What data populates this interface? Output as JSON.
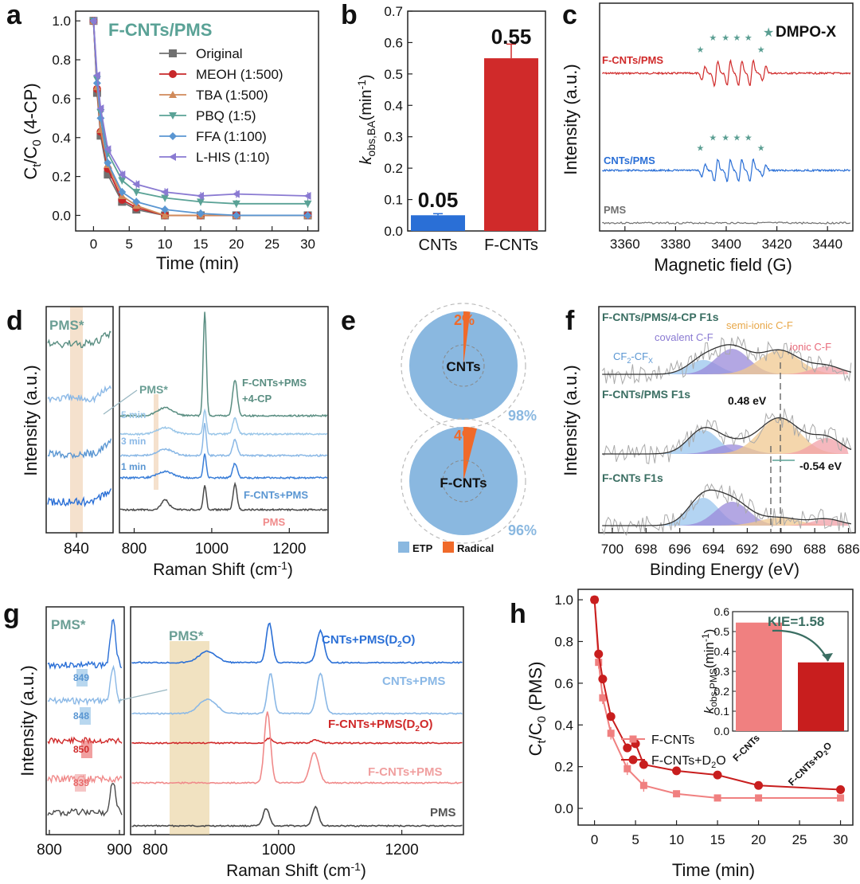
{
  "colors": {
    "orig": "#707070",
    "meoh": "#c8282a",
    "tba": "#d08a5a",
    "pbq": "#5aa296",
    "ffa": "#5a96d2",
    "lhis": "#8a7ad2",
    "blue": "#2a6fd6",
    "red": "#d02a2a",
    "lightblue": "#8ab8e6",
    "pink": "#f08a8a",
    "teal": "#5a8e82",
    "darkgray": "#4a4a4a",
    "pie_etp": "#8ab8e0",
    "pie_rad": "#f06a2a",
    "salmon": "#f08080",
    "darkred": "#c81e1e"
  },
  "panels": {
    "a": {
      "label": "a",
      "heading": "F-CNTs/PMS"
    },
    "b": {
      "label": "b",
      "value_labels": [
        "0.05",
        "0.55"
      ]
    },
    "c": {
      "label": "c",
      "series_labels": [
        "F-CNTs/PMS",
        "CNTs/PMS",
        "PMS"
      ],
      "marker_legend": "DMPO-X",
      "star": "★"
    },
    "d": {
      "label": "d",
      "pms_star": "PMS*",
      "pms_star2": "PMS*",
      "curve_labels": [
        "F-CNTs+PMS",
        "+4-CP",
        "5 min",
        "3 min",
        "1 min",
        "F-CNTs+PMS",
        "PMS"
      ],
      "ylabel": "Intensity (a.u.)",
      "xlabel": "Raman Shift (cm⁻¹)",
      "inset_tick": "840",
      "ticks": [
        "800",
        "1000",
        "1200"
      ]
    },
    "e": {
      "label": "e",
      "pies": [
        {
          "name": "CNTs",
          "radical_pct": "2%",
          "etp_pct": "98%",
          "radical": 2,
          "etp": 98
        },
        {
          "name": "F-CNTs",
          "radical_pct": "4%",
          "etp_pct": "96%",
          "radical": 4,
          "etp": 96
        }
      ],
      "legend": [
        "ETP",
        "Radical"
      ]
    },
    "f": {
      "label": "f",
      "titles": [
        "F-CNTs/PMS/4-CP  F1s",
        "F-CNTs/PMS  F1s",
        "F-CNTs  F1s"
      ],
      "components": [
        "covalent C-F",
        "semi-ionic C-F",
        "ionic C-F"
      ],
      "cf2": "CF",
      "cf2_sub": "2",
      "cfx_dash": "-CF",
      "cfx_sub": "X",
      "shift1": "0.48 eV",
      "shift2": "-0.54 eV",
      "ylabel": "Intensity (a.u.)",
      "xlabel": "Binding Energy (eV)",
      "ticks": [
        "700",
        "698",
        "696",
        "694",
        "692",
        "690",
        "688",
        "686"
      ]
    },
    "g": {
      "label": "g",
      "pms_star": "PMS*",
      "pms_star2": "PMS*",
      "curve_labels": [
        "CNTs+PMS(D",
        "CNTs+PMS",
        "F-CNTs+PMS(D",
        "F-CNTs+PMS",
        "PMS"
      ],
      "d2o_sub": "2",
      "d2o_tail": "O)",
      "peak_labels": [
        "849",
        "848",
        "850",
        "839"
      ],
      "ylabel": "Intensity (a.u.)",
      "xlabel": "Raman Shift (cm⁻¹)",
      "inset_ticks": [
        "800",
        "900"
      ],
      "ticks": [
        "800",
        "1000",
        "1200"
      ]
    },
    "h": {
      "label": "h",
      "kie": "KIE=1.58",
      "inset_xlabels": [
        "F-CNTs",
        "F-CNTs+D"
      ],
      "inset_sub": "2",
      "inset_o": "O"
    }
  },
  "chart_data": [
    {
      "panel": "a",
      "type": "line",
      "title": "F-CNTs/PMS",
      "xlabel": "Time (min)",
      "ylabel": "Ct/C0 (4-CP)",
      "xlim": [
        -2.5,
        31.5
      ],
      "ylim": [
        -0.08,
        1.05
      ],
      "xticks": [
        0,
        5,
        10,
        15,
        20,
        25,
        30
      ],
      "yticks": [
        0.0,
        0.2,
        0.4,
        0.6,
        0.8,
        1.0
      ],
      "x": [
        0,
        0.5,
        1,
        2,
        4,
        6,
        10,
        15,
        20,
        30
      ],
      "series": [
        {
          "name": "Original",
          "values": [
            1.0,
            0.63,
            0.41,
            0.21,
            0.07,
            0.03,
            0.0,
            0.0,
            0.0,
            0.0
          ]
        },
        {
          "name": "MEOH (1:500)",
          "values": [
            1.0,
            0.65,
            0.43,
            0.24,
            0.08,
            0.04,
            0.0,
            0.0,
            0.0,
            0.0
          ]
        },
        {
          "name": "TBA (1:500)",
          "values": [
            1.0,
            0.66,
            0.44,
            0.26,
            0.1,
            0.05,
            0.0,
            0.0,
            0.0,
            0.0
          ]
        },
        {
          "name": "PBQ (1:5)",
          "values": [
            1.0,
            0.7,
            0.53,
            0.32,
            0.18,
            0.12,
            0.09,
            0.07,
            0.06,
            0.06
          ]
        },
        {
          "name": "FFA (1:100)",
          "values": [
            1.0,
            0.68,
            0.5,
            0.27,
            0.12,
            0.07,
            0.03,
            0.01,
            0.0,
            0.0
          ]
        },
        {
          "name": "L-HIS (1:10)",
          "values": [
            1.0,
            0.72,
            0.55,
            0.34,
            0.21,
            0.16,
            0.12,
            0.1,
            0.11,
            0.1
          ]
        }
      ]
    },
    {
      "panel": "b",
      "type": "bar",
      "ylabel": "kobs,BA(min-1)",
      "categories": [
        "CNTs",
        "F-CNTs"
      ],
      "values": [
        0.05,
        0.55
      ],
      "errors": [
        0.005,
        0.045
      ],
      "ylim": [
        0,
        0.7
      ],
      "yticks": [
        0.0,
        0.1,
        0.2,
        0.3,
        0.4,
        0.5,
        0.6,
        0.7
      ]
    },
    {
      "panel": "c",
      "type": "line",
      "xlabel": "Magnetic field (G)",
      "ylabel": "Intensity (a.u.)",
      "xlim": [
        3350,
        3450
      ],
      "xticks": [
        3360,
        3380,
        3400,
        3420,
        3440
      ],
      "series": [
        "F-CNTs/PMS",
        "CNTs/PMS",
        "PMS"
      ],
      "legend": "DMPO-X"
    },
    {
      "panel": "h",
      "type": "line",
      "xlabel": "Time (min)",
      "ylabel": "Ct/C0 (PMS)",
      "xlim": [
        -2,
        31.5
      ],
      "ylim": [
        -0.08,
        1.05
      ],
      "xticks": [
        0,
        5,
        10,
        15,
        20,
        25,
        30
      ],
      "yticks": [
        0.0,
        0.2,
        0.4,
        0.6,
        0.8,
        1.0
      ],
      "series": [
        {
          "name": "F-CNTs",
          "x": [
            0,
            0.5,
            1,
            2,
            4,
            6,
            10,
            15,
            20,
            30
          ],
          "values": [
            1.0,
            0.7,
            0.53,
            0.36,
            0.19,
            0.11,
            0.07,
            0.05,
            0.05,
            0.05
          ],
          "errors": [
            0,
            0.03,
            0.03,
            0.03,
            0.03,
            0.03,
            0.01,
            0.01,
            0.01,
            0.01
          ]
        },
        {
          "name": "F-CNTs+D2O",
          "x": [
            0,
            0.5,
            1,
            2,
            4,
            5,
            6,
            10,
            15,
            20,
            30
          ],
          "values": [
            1.0,
            0.74,
            0.62,
            0.44,
            0.29,
            0.31,
            0.21,
            0.18,
            0.16,
            0.11,
            0.09
          ],
          "errors": [
            0,
            0,
            0,
            0,
            0.02,
            0,
            0,
            0,
            0,
            0,
            0
          ]
        }
      ],
      "inset": {
        "type": "bar",
        "ylabel": "kobs,PMS(min-1)",
        "categories": [
          "F-CNTs",
          "F-CNTs+D2O"
        ],
        "values": [
          0.545,
          0.345
        ],
        "ylim": [
          0,
          0.6
        ],
        "yticks": [
          0.0,
          0.1,
          0.2,
          0.3,
          0.4,
          0.5,
          0.6
        ]
      }
    }
  ]
}
